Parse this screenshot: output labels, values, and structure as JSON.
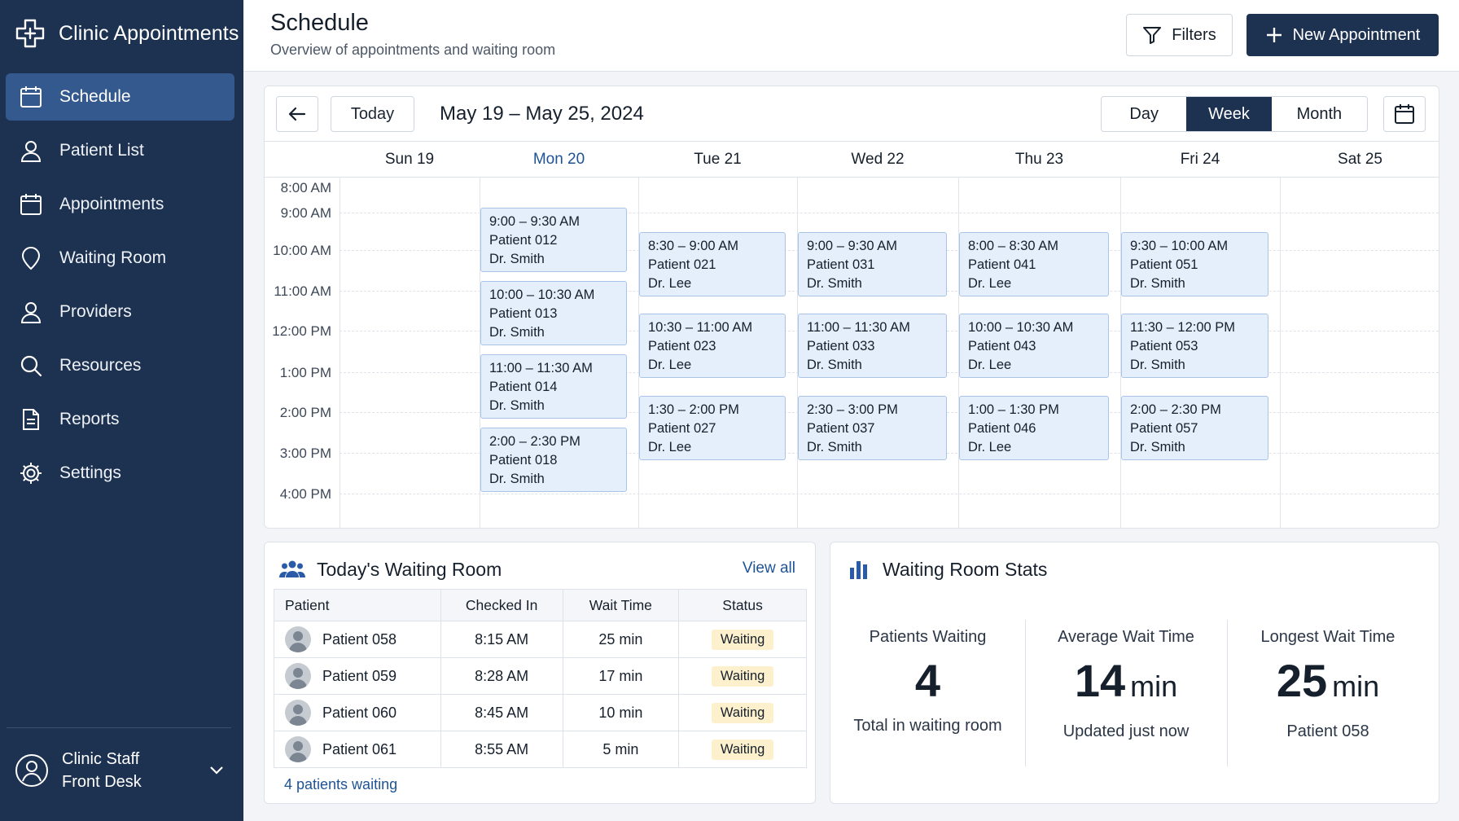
{
  "app": {
    "title": "Clinic Appointments"
  },
  "sidebar": {
    "items": [
      {
        "label": "Schedule",
        "icon": "calendar-icon",
        "active": true
      },
      {
        "label": "Patient List",
        "icon": "person-icon"
      },
      {
        "label": "Appointments",
        "icon": "calendar-icon"
      },
      {
        "label": "Waiting Room",
        "icon": "location-pin-icon"
      },
      {
        "label": "Providers",
        "icon": "person-icon"
      },
      {
        "label": "Resources",
        "icon": "search-icon"
      },
      {
        "label": "Reports",
        "icon": "document-icon"
      },
      {
        "label": "Settings",
        "icon": "gear-icon"
      }
    ],
    "user": {
      "name": "Clinic Staff",
      "role": "Front Desk"
    }
  },
  "header": {
    "title": "Schedule",
    "subtitle": "Overview of appointments and waiting room",
    "filters_label": "Filters",
    "new_label": "New Appointment"
  },
  "calendar": {
    "today_label": "Today",
    "range": "May 19 – May 25, 2024",
    "views": {
      "day": "Day",
      "week": "Week",
      "month": "Month"
    },
    "active_view": "Week",
    "days": [
      {
        "label": "Sun 19"
      },
      {
        "label": "Mon 20",
        "today": true
      },
      {
        "label": "Tue 21"
      },
      {
        "label": "Wed 22"
      },
      {
        "label": "Thu 23"
      },
      {
        "label": "Fri 24"
      },
      {
        "label": "Sat 25"
      }
    ],
    "times": [
      "8:00 AM",
      "9:00 AM",
      "10:00 AM",
      "11:00 AM",
      "12:00 PM",
      "1:00 PM",
      "2:00 PM",
      "3:00 PM",
      "4:00 PM"
    ],
    "appointments": [
      {
        "day": 1,
        "time": "9:00 – 9:30 AM",
        "patient": "Patient 012",
        "provider": "Dr. Smith"
      },
      {
        "day": 1,
        "time": "10:00 – 10:30 AM",
        "patient": "Patient 013",
        "provider": "Dr. Smith"
      },
      {
        "day": 1,
        "time": "11:00 – 11:30 AM",
        "patient": "Patient 014",
        "provider": "Dr. Smith"
      },
      {
        "day": 1,
        "time": "2:00 – 2:30 PM",
        "patient": "Patient 018",
        "provider": "Dr. Smith"
      },
      {
        "day": 2,
        "time": "8:30 – 9:00 AM",
        "patient": "Patient 021",
        "provider": "Dr. Lee"
      },
      {
        "day": 2,
        "time": "10:30 – 11:00 AM",
        "patient": "Patient 023",
        "provider": "Dr. Lee"
      },
      {
        "day": 2,
        "time": "1:30 – 2:00 PM",
        "patient": "Patient 027",
        "provider": "Dr. Lee"
      },
      {
        "day": 3,
        "time": "9:00 – 9:30 AM",
        "patient": "Patient 031",
        "provider": "Dr. Smith"
      },
      {
        "day": 3,
        "time": "11:00 – 11:30 AM",
        "patient": "Patient 033",
        "provider": "Dr. Smith"
      },
      {
        "day": 3,
        "time": "2:30 – 3:00 PM",
        "patient": "Patient 037",
        "provider": "Dr. Smith"
      },
      {
        "day": 4,
        "time": "8:00 – 8:30 AM",
        "patient": "Patient 041",
        "provider": "Dr. Lee"
      },
      {
        "day": 4,
        "time": "10:00 – 10:30 AM",
        "patient": "Patient 043",
        "provider": "Dr. Lee"
      },
      {
        "day": 4,
        "time": "1:00 – 1:30 PM",
        "patient": "Patient 046",
        "provider": "Dr. Lee"
      },
      {
        "day": 5,
        "time": "9:30 – 10:00 AM",
        "patient": "Patient 051",
        "provider": "Dr. Smith"
      },
      {
        "day": 5,
        "time": "11:30 – 12:00 PM",
        "patient": "Patient 053",
        "provider": "Dr. Smith"
      },
      {
        "day": 5,
        "time": "2:00 – 2:30 PM",
        "patient": "Patient 057",
        "provider": "Dr. Smith"
      }
    ]
  },
  "waiting_room": {
    "title": "Today's Waiting Room",
    "view_all": "View all",
    "columns": [
      "Patient",
      "Checked In",
      "Wait Time",
      "Status"
    ],
    "rows": [
      {
        "patient": "Patient 058",
        "checked_in": "8:15 AM",
        "wait": "25 min",
        "status": "Waiting"
      },
      {
        "patient": "Patient 059",
        "checked_in": "8:28 AM",
        "wait": "17 min",
        "status": "Waiting"
      },
      {
        "patient": "Patient 060",
        "checked_in": "8:45 AM",
        "wait": "10 min",
        "status": "Waiting"
      },
      {
        "patient": "Patient 061",
        "checked_in": "8:55 AM",
        "wait": "5 min",
        "status": "Waiting"
      }
    ],
    "footer": "4 patients waiting"
  },
  "stats": {
    "title": "Waiting Room Stats",
    "items": [
      {
        "label": "Patients Waiting",
        "value": "4",
        "unit": "",
        "sub": "Total in waiting room"
      },
      {
        "label": "Average Wait Time",
        "value": "14",
        "unit": "min",
        "sub": "Updated just now"
      },
      {
        "label": "Longest Wait Time",
        "value": "25",
        "unit": "min",
        "sub": "Patient 058"
      }
    ]
  },
  "colors": {
    "sidebar_bg": "#1d3150",
    "active_nav": "#34598e",
    "accent": "#1e5396",
    "appointment_bg": "#e5effb",
    "waiting_badge": "#fdf0cc"
  }
}
